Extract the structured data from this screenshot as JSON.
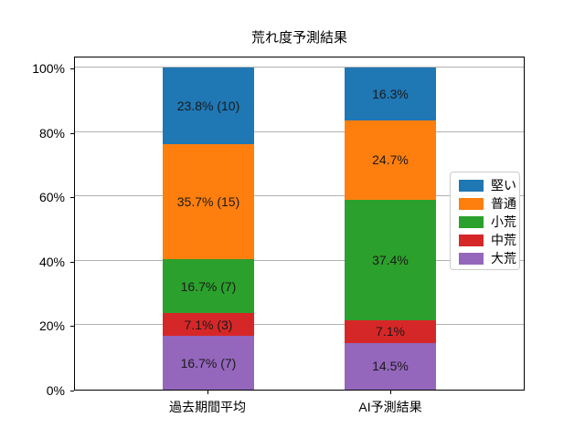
{
  "chart_data": {
    "type": "bar",
    "stacked": true,
    "title": "荒れ度予測結果",
    "categories": [
      "過去期間平均",
      "AI予測結果"
    ],
    "series": [
      {
        "name": "大荒",
        "color": "#9467bd",
        "values": [
          16.7,
          14.5
        ],
        "labels": [
          "16.7% (7)",
          "14.5%"
        ]
      },
      {
        "name": "中荒",
        "color": "#d62728",
        "values": [
          7.1,
          7.1
        ],
        "labels": [
          "7.1% (3)",
          "7.1%"
        ]
      },
      {
        "name": "小荒",
        "color": "#2ca02c",
        "values": [
          16.7,
          37.4
        ],
        "labels": [
          "16.7% (7)",
          "37.4%"
        ]
      },
      {
        "name": "普通",
        "color": "#ff7f0e",
        "values": [
          35.7,
          24.7
        ],
        "labels": [
          "35.7% (15)",
          "24.7%"
        ]
      },
      {
        "name": "堅い",
        "color": "#1f77b4",
        "values": [
          23.8,
          16.3
        ],
        "labels": [
          "23.8% (10)",
          "16.3%"
        ]
      }
    ],
    "legend_entries_top_to_bottom": [
      "堅い",
      "普通",
      "小荒",
      "中荒",
      "大荒"
    ],
    "legend_position": "center right",
    "y_tick_values": [
      0,
      20,
      40,
      60,
      80,
      100
    ],
    "y_tick_labels": [
      "0%",
      "20%",
      "40%",
      "60%",
      "80%",
      "100%"
    ],
    "ylim": [
      0,
      100
    ],
    "grid": true
  }
}
